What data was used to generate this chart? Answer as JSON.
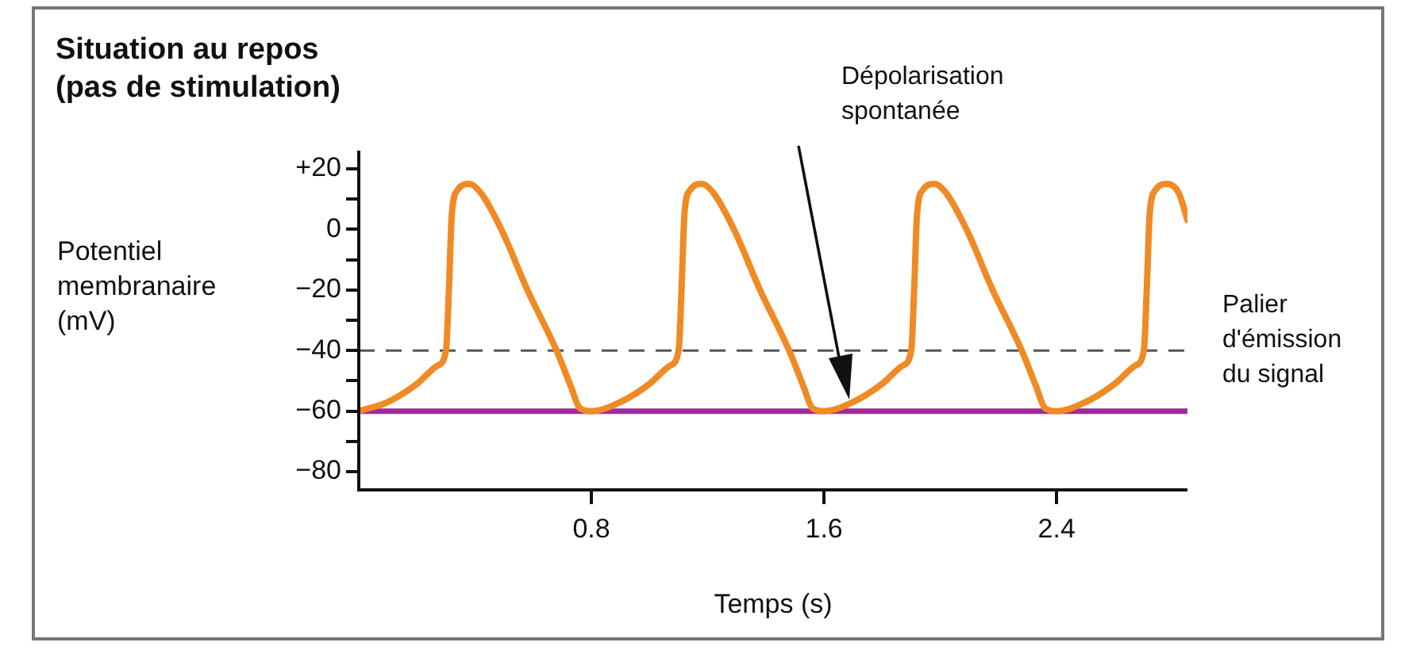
{
  "chart_data": {
    "type": "line",
    "title": "Situation au repos (pas de stimulation)",
    "xlabel": "Temps (s)",
    "ylabel": "Potentiel membranaire (mV)",
    "series": [
      {
        "color": "#f08a24",
        "x": [
          0,
          0.1,
          0.2,
          0.27,
          0.3,
          0.31,
          0.32,
          0.34,
          0.38,
          0.42,
          0.49,
          0.58,
          0.68,
          0.73,
          0.76,
          0.8,
          0.9,
          1.0,
          1.07,
          1.1,
          1.11,
          1.12,
          1.14,
          1.18,
          1.22,
          1.29,
          1.38,
          1.48,
          1.53,
          1.56,
          1.6,
          1.7,
          1.8,
          1.87,
          1.9,
          1.91,
          1.92,
          1.94,
          1.98,
          2.02,
          2.09,
          2.18,
          2.28,
          2.33,
          2.36,
          2.4,
          2.5,
          2.6,
          2.67,
          2.7,
          2.71,
          2.72,
          2.74,
          2.78,
          2.82,
          2.85
        ],
        "values": [
          -60,
          -57,
          -51,
          -45,
          -40,
          -20,
          5,
          13,
          15,
          12,
          0,
          -20,
          -40,
          -52,
          -59,
          -60,
          -57,
          -51,
          -45,
          -40,
          -20,
          5,
          13,
          15,
          12,
          0,
          -20,
          -40,
          -52,
          -59,
          -60,
          -57,
          -51,
          -45,
          -40,
          -20,
          5,
          13,
          15,
          12,
          0,
          -20,
          -40,
          -52,
          -59,
          -60,
          -57,
          -51,
          -45,
          -40,
          -20,
          5,
          13,
          15,
          12,
          3
        ]
      }
    ],
    "xlim": [
      0,
      2.85
    ],
    "xticks": [
      0.8,
      1.6,
      2.4
    ],
    "ylim": [
      -86,
      26
    ],
    "yticks": [
      {
        "value": 20,
        "label": "+20"
      },
      {
        "value": 10,
        "label": null
      },
      0,
      {
        "value": -10,
        "label": null
      },
      {
        "value": -20,
        "label": "−20"
      },
      {
        "value": -30,
        "label": null
      },
      {
        "value": -40,
        "label": "−40"
      },
      {
        "value": -50,
        "label": null
      },
      {
        "value": -60,
        "label": "−60"
      },
      {
        "value": -70,
        "label": null
      },
      {
        "value": -80,
        "label": "−80"
      }
    ],
    "ref_lines": [
      {
        "axis": "y",
        "value": -40,
        "label": "Palier d'émission du signal",
        "color": "#555555",
        "line_style": "dashed"
      },
      {
        "axis": "y",
        "value": -60,
        "color": "#9b2d9b",
        "line_style": "solid"
      }
    ],
    "annotations": [
      "Dépolarisation spontanée"
    ],
    "grid": false,
    "legend": false,
    "marker": "none",
    "line_style": "solid"
  }
}
